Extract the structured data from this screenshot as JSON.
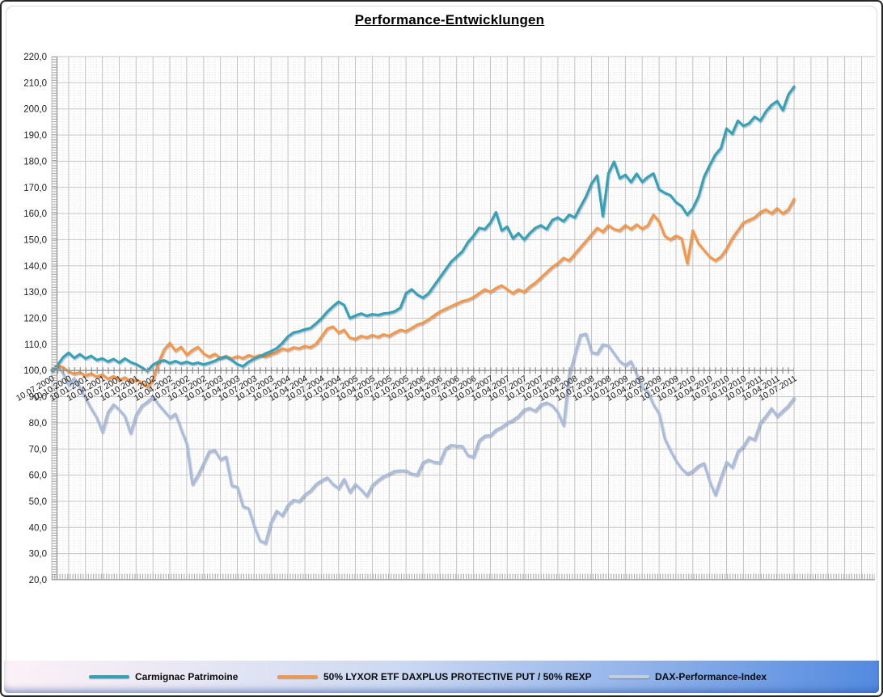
{
  "title": "Performance-Entwicklungen",
  "legend": [
    {
      "label": "Carmignac Patrimoine",
      "color": "#31a2bc"
    },
    {
      "label": "50% LYXOR ETF DAXPLUS PROTECTIVE PUT / 50% REXP",
      "color": "#f79646"
    },
    {
      "label": "DAX-Performance-Index",
      "color": "#c7cedb"
    }
  ],
  "chart_data": {
    "type": "line",
    "title": "Performance-Entwicklungen",
    "ylim": [
      20,
      220
    ],
    "y_tick_step": 10,
    "axis_cross_value": 100,
    "grid": {
      "minor": "#dbdbdb",
      "major": "#c3c3c3",
      "axis": "#8f8f8f",
      "background": "#ffffff"
    },
    "legend_position": "bottom",
    "y_tick_labels": [
      "220,0",
      "210,0",
      "200,0",
      "190,0",
      "180,0",
      "170,0",
      "160,0",
      "150,0",
      "140,0",
      "130,0",
      "120,0",
      "110,0",
      "100,0",
      "90,0",
      "80,0",
      "70,0",
      "60,0",
      "50,0",
      "40,0",
      "30,0",
      "20,0"
    ],
    "x_tick_labels": [
      "10.07.2000",
      "10.10.2000",
      "10.01.2001",
      "10.04.2001",
      "10.07.2001",
      "10.10.2001",
      "10.01.2002",
      "10.04.2002",
      "10.07.2002",
      "10.10.2002",
      "10.01.2003",
      "10.04.2003",
      "10.07.2003",
      "10.10.2003",
      "10.01.2004",
      "10.04.2004",
      "10.07.2004",
      "10.10.2004",
      "10.01.2005",
      "10.04.2005",
      "10.07.2005",
      "10.10.2005",
      "10.01.2006",
      "10.04.2006",
      "10.07.2006",
      "10.10.2006",
      "10.01.2007",
      "10.04.2007",
      "10.07.2007",
      "10.10.2007",
      "10.01.2008",
      "10.04.2008",
      "10.07.2008",
      "10.10.2008",
      "10.01.2009",
      "10.04.2009",
      "10.07.2009",
      "10.10.2009",
      "10.01.2010",
      "10.04.2010",
      "10.07.2010",
      "10.10.2010",
      "10.01.2011",
      "10.04.2011",
      "10.07.2011"
    ],
    "x_unit": "monthly samples, Jul 2000 - Jul 2011",
    "series": [
      {
        "name": "Carmignac Patrimoine",
        "color": "#31a2bc",
        "values": [
          100.0,
          102.0,
          105.0,
          106.8,
          104.8,
          106.2,
          104.6,
          105.6,
          104.0,
          104.6,
          103.4,
          104.4,
          103.0,
          104.6,
          103.2,
          102.4,
          101.2,
          99.8,
          102.2,
          103.4,
          103.9,
          102.8,
          103.6,
          102.7,
          103.3,
          102.5,
          103.0,
          102.3,
          102.9,
          103.7,
          104.8,
          105.3,
          104.0,
          102.4,
          101.6,
          103.3,
          104.5,
          105.4,
          106.5,
          107.4,
          108.5,
          110.5,
          113.0,
          114.5,
          115.0,
          115.7,
          116.2,
          118.0,
          120.0,
          122.5,
          124.5,
          126.3,
          125.0,
          120.0,
          121.0,
          121.8,
          120.9,
          121.5,
          121.2,
          121.8,
          122.0,
          122.6,
          124.0,
          129.5,
          131.0,
          129.0,
          127.8,
          129.5,
          132.5,
          135.5,
          138.5,
          141.5,
          143.5,
          145.5,
          149.0,
          151.5,
          154.5,
          154.0,
          156.5,
          160.5,
          153.5,
          155.0,
          150.5,
          152.5,
          150.0,
          152.5,
          154.5,
          155.5,
          154.0,
          157.5,
          158.5,
          157.0,
          159.5,
          158.5,
          162.5,
          166.5,
          171.5,
          174.5,
          159.0,
          175.5,
          179.8,
          173.5,
          174.8,
          172.0,
          175.2,
          172.1,
          174.0,
          175.3,
          169.2,
          167.9,
          167.0,
          164.3,
          162.8,
          159.5,
          162.0,
          166.5,
          174.0,
          178.5,
          182.5,
          185.0,
          192.5,
          190.5,
          195.5,
          193.5,
          194.5,
          197.0,
          195.5,
          199.0,
          201.5,
          203.0,
          199.5,
          205.5,
          208.5
        ]
      },
      {
        "name": "50% LYXOR ETF DAXPLUS PROTECTIVE PUT / 50% REXP",
        "color": "#f79646",
        "values": [
          100.3,
          101.8,
          101.2,
          99.6,
          98.7,
          99.3,
          98.0,
          98.8,
          97.6,
          98.4,
          96.8,
          97.8,
          96.4,
          97.3,
          95.9,
          96.6,
          95.3,
          93.7,
          96.5,
          103.0,
          108.0,
          110.5,
          107.5,
          109.0,
          106.0,
          107.8,
          109.0,
          106.5,
          105.2,
          106.3,
          104.8,
          105.5,
          104.6,
          105.4,
          104.7,
          105.8,
          105.1,
          105.9,
          105.3,
          106.2,
          107.0,
          108.3,
          107.8,
          108.8,
          108.4,
          109.3,
          108.8,
          110.2,
          113.0,
          116.0,
          116.8,
          114.5,
          115.5,
          112.5,
          112.0,
          113.2,
          112.6,
          113.5,
          112.8,
          113.8,
          113.2,
          114.5,
          115.5,
          115.0,
          116.2,
          117.5,
          118.2,
          119.5,
          121.0,
          122.5,
          123.5,
          124.5,
          125.5,
          126.5,
          127.0,
          128.0,
          129.5,
          131.0,
          130.0,
          131.5,
          132.5,
          131.0,
          129.5,
          131.0,
          130.0,
          132.0,
          133.5,
          135.5,
          137.5,
          139.5,
          141.0,
          143.0,
          142.0,
          144.5,
          147.0,
          149.5,
          152.0,
          154.5,
          153.0,
          155.5,
          154.0,
          153.5,
          155.5,
          154.0,
          155.8,
          154.2,
          155.5,
          159.5,
          157.0,
          151.5,
          150.0,
          151.5,
          150.5,
          141.0,
          153.5,
          148.5,
          146.0,
          143.5,
          142.0,
          143.5,
          146.5,
          150.5,
          153.5,
          156.5,
          157.5,
          158.5,
          160.5,
          161.5,
          160.0,
          162.0,
          160.0,
          161.5,
          165.5
        ]
      },
      {
        "name": "DAX-Performance-Index",
        "color": "#a9bcde",
        "values": [
          100.0,
          101.5,
          99.0,
          94.5,
          97.0,
          93.5,
          89.5,
          85.5,
          82.0,
          76.5,
          84.0,
          87.0,
          85.0,
          82.5,
          76.0,
          83.0,
          86.5,
          88.0,
          90.0,
          87.0,
          84.5,
          82.0,
          83.4,
          77.5,
          72.0,
          56.5,
          60.0,
          64.5,
          69.0,
          69.5,
          66.0,
          67.0,
          56.0,
          55.5,
          48.0,
          47.3,
          40.5,
          35.0,
          34.0,
          42.0,
          46.3,
          44.5,
          48.5,
          50.5,
          50.0,
          52.5,
          54.0,
          56.5,
          58.0,
          59.0,
          56.5,
          55.0,
          58.5,
          53.5,
          56.5,
          54.5,
          52.0,
          56.0,
          58.0,
          59.5,
          60.5,
          61.5,
          61.7,
          61.7,
          60.5,
          60.1,
          64.8,
          65.8,
          65.0,
          64.8,
          70.0,
          71.5,
          71.2,
          71.1,
          67.5,
          67.0,
          73.2,
          75.0,
          75.2,
          77.3,
          78.3,
          80.0,
          81.0,
          82.5,
          85.0,
          85.6,
          84.5,
          87.0,
          87.7,
          86.6,
          84.0,
          79.0,
          98.0,
          106.0,
          113.5,
          114.0,
          107.0,
          106.5,
          110.0,
          109.5,
          106.5,
          103.5,
          102.0,
          103.5,
          98.5,
          93.5,
          92.0,
          87.0,
          83.5,
          74.0,
          69.5,
          65.5,
          62.5,
          60.5,
          61.5,
          63.5,
          64.5,
          57.5,
          52.5,
          59.0,
          65.0,
          63.0,
          69.0,
          71.0,
          74.5,
          73.5,
          80.0,
          82.5,
          85.5,
          82.5,
          84.5,
          86.5,
          89.5
        ]
      }
    ]
  }
}
